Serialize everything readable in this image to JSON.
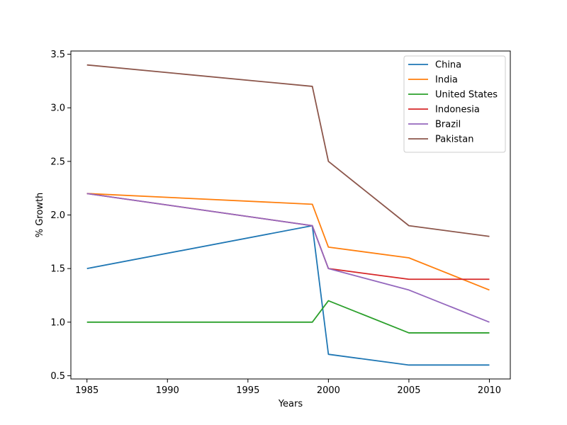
{
  "chart_data": {
    "type": "line",
    "title": "",
    "xlabel": "Years",
    "ylabel": "% Growth",
    "x": [
      1985,
      1999,
      2000,
      2005,
      2010
    ],
    "xlim": [
      1984,
      2011.3
    ],
    "ylim": [
      0.47,
      3.53
    ],
    "xticks": [
      1985,
      1990,
      1995,
      2000,
      2005,
      2010
    ],
    "yticks": [
      0.5,
      1.0,
      1.5,
      2.0,
      2.5,
      3.0,
      3.5
    ],
    "grid": false,
    "legend_position": "top-right",
    "series": [
      {
        "name": "China",
        "color": "#1f77b4",
        "values": [
          1.5,
          1.9,
          0.7,
          0.6,
          0.6
        ]
      },
      {
        "name": "India",
        "color": "#ff7f0e",
        "values": [
          2.2,
          2.1,
          1.7,
          1.6,
          1.3
        ]
      },
      {
        "name": "United States",
        "color": "#2ca02c",
        "values": [
          1.0,
          1.0,
          1.2,
          0.9,
          0.9
        ]
      },
      {
        "name": "Indonesia",
        "color": "#d62728",
        "values": [
          2.2,
          1.9,
          1.5,
          1.4,
          1.4
        ]
      },
      {
        "name": "Brazil",
        "color": "#9467bd",
        "values": [
          2.2,
          1.9,
          1.5,
          1.3,
          1.0
        ]
      },
      {
        "name": "Pakistan",
        "color": "#8c564b",
        "values": [
          3.4,
          3.2,
          2.5,
          1.9,
          1.8
        ]
      }
    ]
  }
}
